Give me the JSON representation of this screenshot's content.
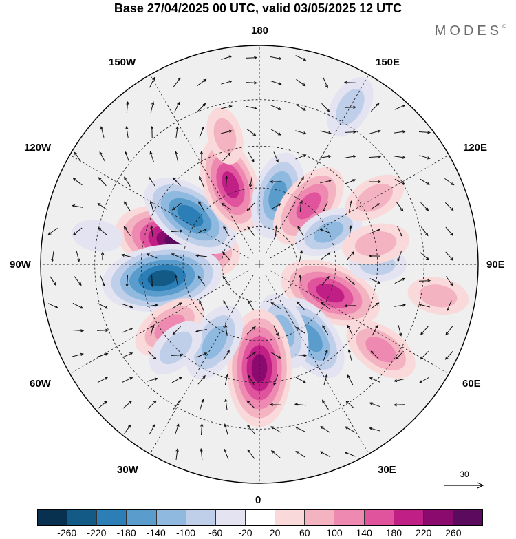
{
  "header": {
    "title": "Base 27/04/2025 00 UTC, valid 03/05/2025 12 UTC",
    "logo": "MODES",
    "logo_mark": "©"
  },
  "map": {
    "projection": "north-polar-stereographic",
    "longitude_labels": {
      "top": "180",
      "bottom": "0",
      "left": "90W",
      "right": "90E",
      "upper_left_1": "150W",
      "upper_left_2": "120W",
      "lower_left_1": "60W",
      "lower_left_2": "30W",
      "upper_right_1": "150E",
      "upper_right_2": "120E",
      "lower_right_1": "60E",
      "lower_right_2": "30E"
    },
    "graticule": "dashed",
    "vectors": "wind arrows",
    "anomalies": [
      {
        "lon": -105,
        "lat": 57,
        "value": 270
      },
      {
        "lon": -82,
        "lat": 52,
        "value": -250
      },
      {
        "lon": -125,
        "lat": 57,
        "value": -200
      },
      {
        "lon": -160,
        "lat": 57,
        "value": 180
      },
      {
        "lon": 165,
        "lat": 62,
        "value": -150
      },
      {
        "lon": 140,
        "lat": 60,
        "value": 160
      },
      {
        "lon": 115,
        "lat": 60,
        "value": -100
      },
      {
        "lon": 68,
        "lat": 60,
        "value": 200
      },
      {
        "lon": 35,
        "lat": 55,
        "value": -160
      },
      {
        "lon": 20,
        "lat": 62,
        "value": -120
      },
      {
        "lon": 0,
        "lat": 50,
        "value": 240
      },
      {
        "lon": -55,
        "lat": 48,
        "value": 120
      },
      {
        "lon": -30,
        "lat": 55,
        "value": -130
      },
      {
        "lon": -45,
        "lat": 45,
        "value": -80
      },
      {
        "lon": 55,
        "lat": 35,
        "value": 120
      },
      {
        "lon": 90,
        "lat": 45,
        "value": -60
      },
      {
        "lon": 100,
        "lat": 45,
        "value": 90
      },
      {
        "lon": 150,
        "lat": 25,
        "value": -80
      },
      {
        "lon": -165,
        "lat": 40,
        "value": 60
      },
      {
        "lon": 80,
        "lat": 25,
        "value": 70
      },
      {
        "lon": -100,
        "lat": 30,
        "value": -40
      },
      {
        "lon": 120,
        "lat": 40,
        "value": 80
      }
    ]
  },
  "reference_vector": {
    "label": "30"
  },
  "colorbar": {
    "colors": [
      "#08314f",
      "#135a86",
      "#2b7fb6",
      "#5a9dcc",
      "#8fb9df",
      "#c0cfe9",
      "#e3e3f1",
      "#ffffff",
      "#f9d9d9",
      "#f4b3c1",
      "#ee8ab1",
      "#e0549e",
      "#c01f86",
      "#8b0a6d",
      "#5c0a5e"
    ],
    "ticks": [
      "-260",
      "-220",
      "-180",
      "-140",
      "-100",
      "-60",
      "-20",
      "20",
      "60",
      "100",
      "140",
      "180",
      "220",
      "260"
    ]
  }
}
